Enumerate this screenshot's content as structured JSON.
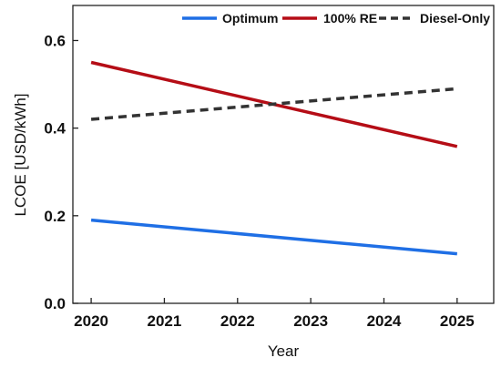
{
  "chart_data": {
    "type": "line",
    "title": "",
    "xlabel": "Year",
    "ylabel": "LCOE [USD/kWh]",
    "x": [
      2020,
      2025
    ],
    "xticks": [
      "2020",
      "2021",
      "2022",
      "2023",
      "2024",
      "2025"
    ],
    "xlim": [
      2019.75,
      2025.5
    ],
    "ylim": [
      0.0,
      0.68
    ],
    "yticks": [
      "0.0",
      "0.2",
      "0.4",
      "0.6"
    ],
    "grid": false,
    "legend_position": "top-right",
    "series": [
      {
        "name": "Optimum",
        "values": [
          0.19,
          0.113
        ],
        "color": "#1f6fe5",
        "style": "solid"
      },
      {
        "name": "100% RE",
        "values": [
          0.55,
          0.358
        ],
        "color": "#b50d16",
        "style": "solid"
      },
      {
        "name": "Diesel-Only",
        "values": [
          0.42,
          0.49
        ],
        "color": "#333333",
        "style": "dashed"
      }
    ]
  }
}
